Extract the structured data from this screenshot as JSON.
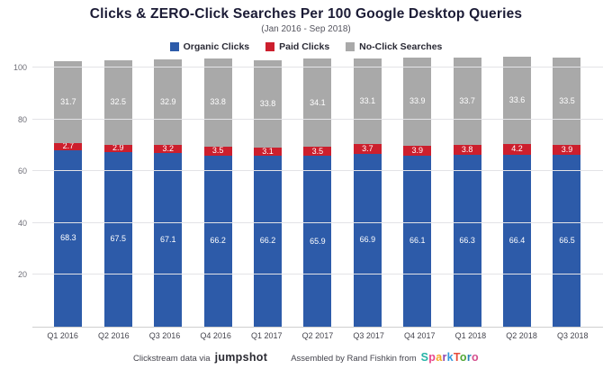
{
  "title": "Clicks & ZERO-Click Searches Per 100 Google Desktop Queries",
  "subtitle": "(Jan 2016 - Sep 2018)",
  "legend": [
    {
      "label": "Organic Clicks",
      "color": "#2d5ba9"
    },
    {
      "label": "Paid Clicks",
      "color": "#cc1f2d"
    },
    {
      "label": "No-Click Searches",
      "color": "#a9a9a9"
    }
  ],
  "footer": {
    "left_prefix": "Clickstream data via",
    "left_brand": "jumpshot",
    "right_prefix": "Assembled by Rand Fishkin from",
    "right_brand_letters": [
      {
        "ch": "S",
        "color": "#26b3a7"
      },
      {
        "ch": "p",
        "color": "#e8468c"
      },
      {
        "ch": "a",
        "color": "#f5a623"
      },
      {
        "ch": "r",
        "color": "#8e44ad"
      },
      {
        "ch": "k",
        "color": "#3498db"
      },
      {
        "ch": "T",
        "color": "#e74c3c"
      },
      {
        "ch": "o",
        "color": "#52a736"
      },
      {
        "ch": "r",
        "color": "#2980b9"
      },
      {
        "ch": "o",
        "color": "#d44f8e"
      }
    ]
  },
  "chart_data": {
    "type": "bar",
    "stacked": true,
    "title": "Clicks & ZERO-Click Searches Per 100 Google Desktop Queries",
    "subtitle": "(Jan 2016 - Sep 2018)",
    "categories": [
      "Q1 2016",
      "Q2 2016",
      "Q3 2016",
      "Q4 2016",
      "Q1 2017",
      "Q2 2017",
      "Q3 2017",
      "Q4 2017",
      "Q1 2018",
      "Q2 2018",
      "Q3 2018"
    ],
    "series": [
      {
        "name": "Organic Clicks",
        "color": "#2d5ba9",
        "values": [
          68.3,
          67.5,
          67.1,
          66.2,
          66.2,
          65.9,
          66.9,
          66.1,
          66.3,
          66.4,
          66.5
        ]
      },
      {
        "name": "Paid Clicks",
        "color": "#cc1f2d",
        "values": [
          2.7,
          2.9,
          3.2,
          3.5,
          3.1,
          3.5,
          3.7,
          3.9,
          3.8,
          4.2,
          3.9
        ]
      },
      {
        "name": "No-Click Searches",
        "color": "#a9a9a9",
        "values": [
          31.7,
          32.5,
          32.9,
          33.8,
          33.8,
          34.1,
          33.1,
          33.9,
          33.7,
          33.6,
          33.5
        ]
      }
    ],
    "yticks": [
      20,
      40,
      60,
      80,
      100
    ],
    "ylim": [
      0,
      105
    ],
    "grid": true,
    "legend_position": "top",
    "value_labels": "inside-white"
  }
}
